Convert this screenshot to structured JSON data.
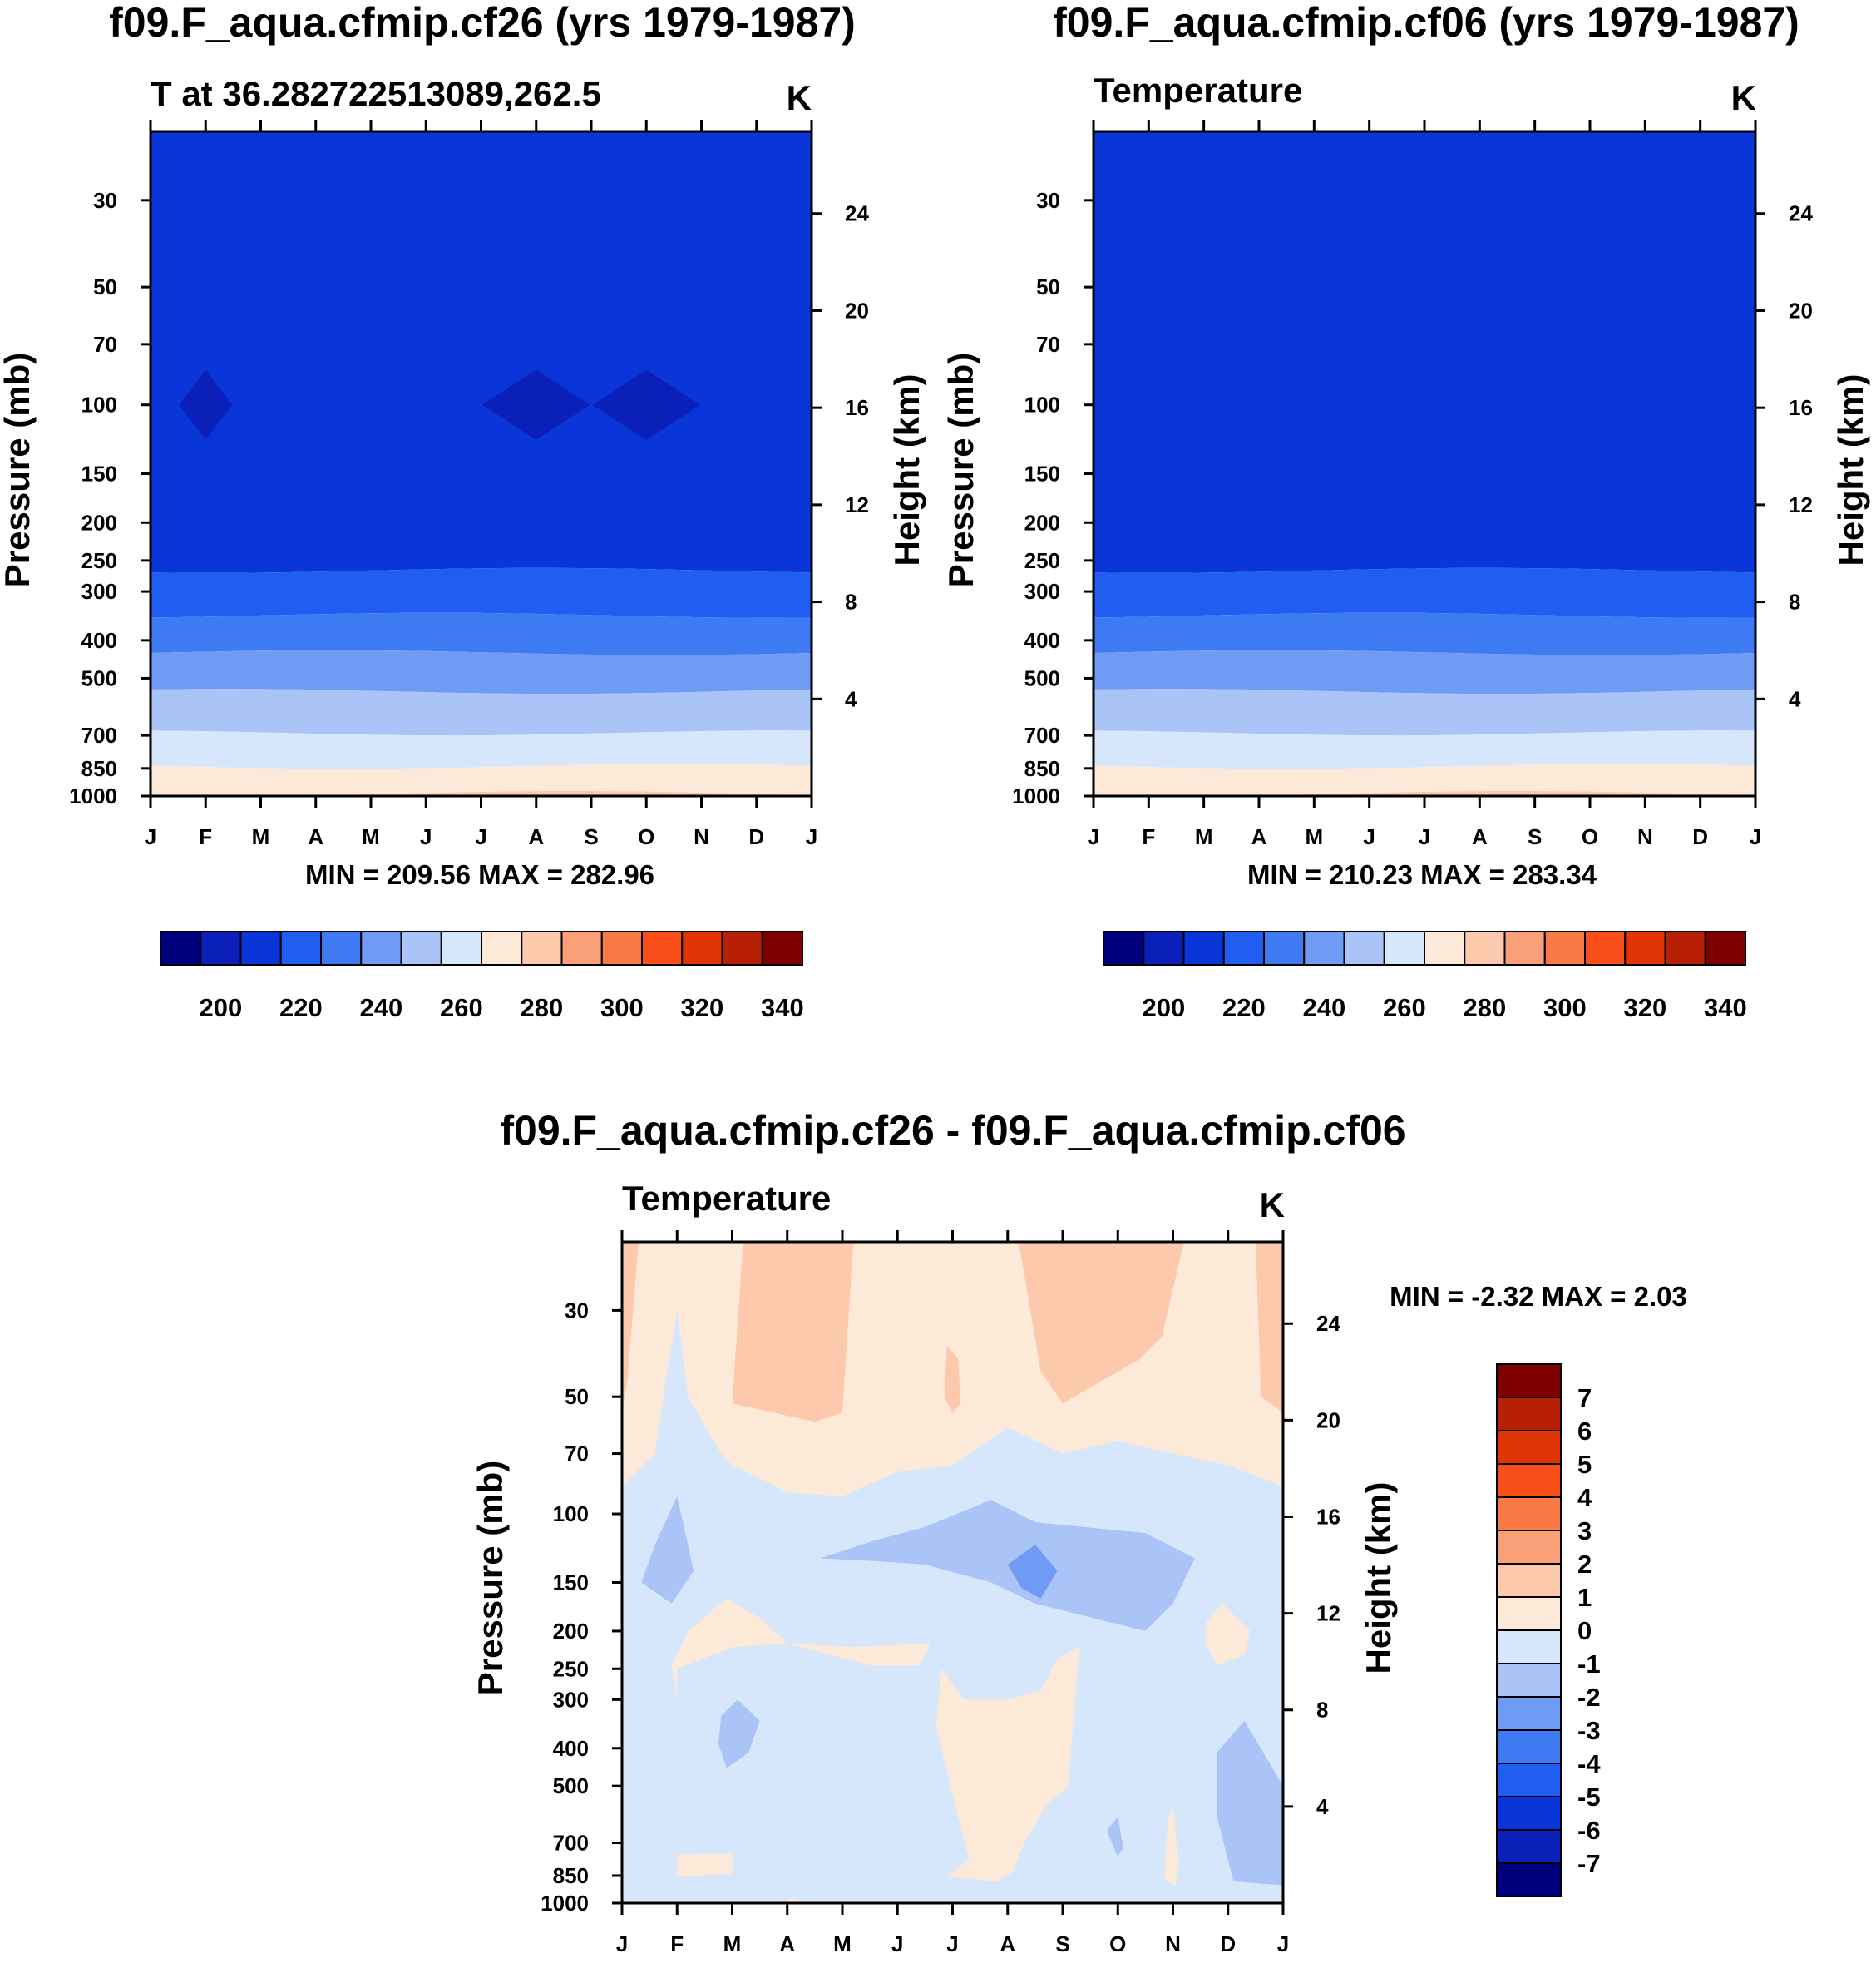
{
  "panels": [
    {
      "title": "f09.F_aqua.cfmip.cf26 (yrs 1979-1987)",
      "subtitle_left": "T at 36.282722513089,262.5",
      "subtitle_right": "K",
      "ylabel": "Pressure (mb)",
      "y2label": "Height (km)",
      "minmax": "MIN = 209.56 MAX = 282.96",
      "colorbar_labels": [
        "200",
        "220",
        "240",
        "260",
        "280",
        "300",
        "320",
        "340"
      ]
    },
    {
      "title": "f09.F_aqua.cfmip.cf06 (yrs 1979-1987)",
      "subtitle_left": "Temperature",
      "subtitle_right": "K",
      "ylabel": "Pressure (mb)",
      "y2label": "Height (km)",
      "minmax": "MIN = 210.23 MAX = 283.34",
      "colorbar_labels": [
        "200",
        "220",
        "240",
        "260",
        "280",
        "300",
        "320",
        "340"
      ]
    },
    {
      "title": "f09.F_aqua.cfmip.cf26 - f09.F_aqua.cfmip.cf06",
      "subtitle_left": "Temperature",
      "subtitle_right": "K",
      "ylabel": "Pressure (mb)",
      "y2label": "Height (km)",
      "minmax": "MIN =  -2.32 MAX =   2.03",
      "colorbar_labels": [
        "7",
        "6",
        "5",
        "4",
        "3",
        "2",
        "1",
        "0",
        "-1",
        "-2",
        "-3",
        "-4",
        "-5",
        "-6",
        "-7"
      ]
    }
  ],
  "chart_data": [
    {
      "type": "contour",
      "title": "f09.F_aqua.cfmip.cf26 (yrs 1979-1987)",
      "variable": "T",
      "units": "K",
      "xlabel": "",
      "ylabel": "Pressure (mb)",
      "y2label": "Height (km)",
      "x_ticks": [
        "J",
        "F",
        "M",
        "A",
        "M",
        "J",
        "J",
        "A",
        "S",
        "O",
        "N",
        "D",
        "J"
      ],
      "y_ticks": [
        30,
        50,
        70,
        100,
        150,
        200,
        250,
        300,
        400,
        500,
        700,
        850,
        1000
      ],
      "y2_ticks": [
        24,
        20,
        16,
        12,
        8,
        4
      ],
      "min": 209.56,
      "max": 282.96,
      "contour_levels": [
        200,
        210,
        220,
        230,
        240,
        250,
        260,
        270,
        280,
        290,
        300,
        310,
        320,
        330,
        340
      ],
      "colors": [
        "#00007f",
        "#0a20b8",
        "#0a35d8",
        "#1f5ef0",
        "#3e7af2",
        "#6f9bf5",
        "#aac4f8",
        "#d7e7fb",
        "#fde9d8",
        "#fcc9ad",
        "#f9a078",
        "#fa7a46",
        "#fb4f19",
        "#e23505",
        "#b72005",
        "#800000"
      ],
      "bands": [
        {
          "range": [
            210,
            220
          ],
          "p_top": 20,
          "p_bottom": 265
        },
        {
          "range": [
            220,
            230
          ],
          "p_top": 265,
          "p_bottom": 345
        },
        {
          "range": [
            230,
            240
          ],
          "p_top": 345,
          "p_bottom": 430
        },
        {
          "range": [
            240,
            250
          ],
          "p_top": 430,
          "p_bottom": 540
        },
        {
          "range": [
            250,
            260
          ],
          "p_top": 540,
          "p_bottom": 690
        },
        {
          "range": [
            260,
            270
          ],
          "p_top": 690,
          "p_bottom": 840
        },
        {
          "range": [
            270,
            280
          ],
          "p_top": 840,
          "p_bottom": 985
        },
        {
          "range": [
            280,
            290
          ],
          "p_top": 985,
          "p_bottom": 1000
        }
      ],
      "minima": [
        {
          "month": 1.0,
          "p": 100
        },
        {
          "month": 7.0,
          "p": 100
        },
        {
          "month": 9.0,
          "p": 100
        }
      ]
    },
    {
      "type": "contour",
      "title": "f09.F_aqua.cfmip.cf06 (yrs 1979-1987)",
      "variable": "Temperature",
      "units": "K",
      "xlabel": "",
      "ylabel": "Pressure (mb)",
      "y2label": "Height (km)",
      "x_ticks": [
        "J",
        "F",
        "M",
        "A",
        "M",
        "J",
        "J",
        "A",
        "S",
        "O",
        "N",
        "D",
        "J"
      ],
      "y_ticks": [
        30,
        50,
        70,
        100,
        150,
        200,
        250,
        300,
        400,
        500,
        700,
        850,
        1000
      ],
      "y2_ticks": [
        24,
        20,
        16,
        12,
        8,
        4
      ],
      "min": 210.23,
      "max": 283.34,
      "contour_levels": [
        200,
        210,
        220,
        230,
        240,
        250,
        260,
        270,
        280,
        290,
        300,
        310,
        320,
        330,
        340
      ],
      "bands": [
        {
          "range": [
            210,
            220
          ],
          "p_top": 20,
          "p_bottom": 265
        },
        {
          "range": [
            220,
            230
          ],
          "p_top": 265,
          "p_bottom": 345
        },
        {
          "range": [
            230,
            240
          ],
          "p_top": 345,
          "p_bottom": 430
        },
        {
          "range": [
            240,
            250
          ],
          "p_top": 430,
          "p_bottom": 540
        },
        {
          "range": [
            250,
            260
          ],
          "p_top": 540,
          "p_bottom": 690
        },
        {
          "range": [
            260,
            270
          ],
          "p_top": 690,
          "p_bottom": 840
        },
        {
          "range": [
            270,
            280
          ],
          "p_top": 840,
          "p_bottom": 985
        },
        {
          "range": [
            280,
            290
          ],
          "p_top": 985,
          "p_bottom": 1000
        }
      ]
    },
    {
      "type": "contour",
      "title": "f09.F_aqua.cfmip.cf26 - f09.F_aqua.cfmip.cf06",
      "variable": "Temperature",
      "units": "K",
      "xlabel": "",
      "ylabel": "Pressure (mb)",
      "y2label": "Height (km)",
      "x_ticks": [
        "J",
        "F",
        "M",
        "A",
        "M",
        "J",
        "J",
        "A",
        "S",
        "O",
        "N",
        "D",
        "J"
      ],
      "y_ticks": [
        30,
        50,
        70,
        100,
        150,
        200,
        250,
        300,
        400,
        500,
        700,
        850,
        1000
      ],
      "y2_ticks": [
        24,
        20,
        16,
        12,
        8,
        4
      ],
      "min": -2.32,
      "max": 2.03,
      "contour_levels": [
        -7,
        -6,
        -5,
        -4,
        -3,
        -2,
        -1,
        0,
        1,
        2,
        3,
        4,
        5,
        6,
        7
      ],
      "colors": [
        "#00007f",
        "#0a20b8",
        "#0a35d8",
        "#1f5ef0",
        "#3e7af2",
        "#6f9bf5",
        "#aac4f8",
        "#d7e7fb",
        "#fde9d8",
        "#fcc9ad",
        "#f9a078",
        "#fa7a46",
        "#fb4f19",
        "#e23505",
        "#b72005",
        "#800000"
      ],
      "regions": [
        {
          "range": [
            -1,
            0
          ],
          "description": "background mid-troposphere"
        },
        {
          "range": [
            0,
            1
          ],
          "description": "upper levels above ~90 mb"
        },
        {
          "range": [
            1,
            2
          ],
          "description": "upper levels Mar-Apr and Aug-Oct, Jan"
        },
        {
          "range": [
            -2,
            -1
          ],
          "description": "~100-150 mb band May-Nov; Feb 100-150 mb; Mar 300-400 mb; Dec 400-850 mb"
        },
        {
          "range": [
            -3,
            -2
          ],
          "description": "Aug near 120-140 mb"
        },
        {
          "range": [
            0,
            1
          ],
          "description": "Feb-May ~200-250 mb; Jul-Sep 250-900 mb; Dec ~200 mb"
        }
      ]
    }
  ]
}
